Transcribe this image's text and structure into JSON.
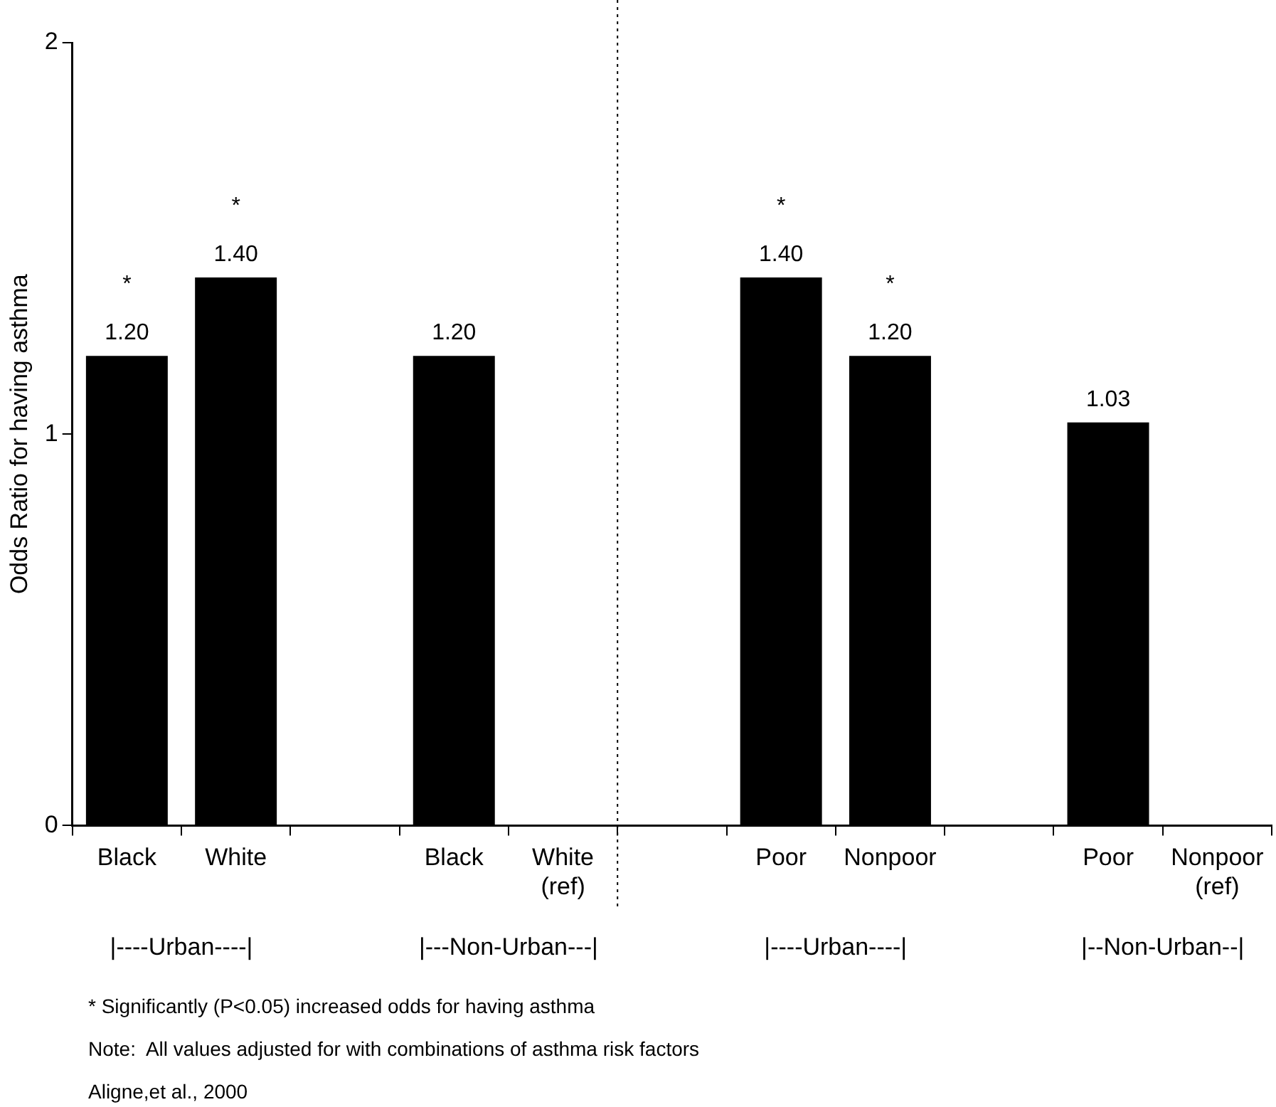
{
  "chart_data": {
    "type": "bar",
    "ylabel": "Odds Ratio for having asthma",
    "categories": [
      "Black",
      "White",
      null,
      "Black",
      "White\n(ref)",
      null,
      "Poor",
      "Nonpoor",
      null,
      "Poor",
      "Nonpoor\n(ref)"
    ],
    "series": [
      {
        "color": "#000000",
        "values": [
          1.2,
          1.4,
          null,
          1.2,
          null,
          null,
          1.4,
          1.2,
          null,
          1.03,
          null
        ],
        "value_labels": [
          "1.20",
          "1.40",
          null,
          "1.20",
          null,
          null,
          "1.40",
          "1.20",
          null,
          "1.03",
          null
        ]
      }
    ],
    "ylim": [
      0,
      2
    ],
    "yticks": [
      0,
      1,
      2
    ],
    "grid": false,
    "legend": false,
    "annotations": [
      "|----Urban----|",
      "|---Non-Urban---|",
      "|----Urban----|",
      "|--Non-Urban--|",
      "* Significantly (P<0.05) increased odds for having asthma",
      "Note:  All values adjusted for with combinations of asthma risk factors",
      "Aligne,et al., 2000",
      {
        "text": "*",
        "x": "Black",
        "y": 1.2
      },
      {
        "text": "*",
        "x": "White",
        "y": 1.4
      },
      {
        "text": "*",
        "x": "Poor",
        "y": 1.4
      },
      {
        "text": "*",
        "x": "Nonpoor",
        "y": 1.2
      }
    ]
  }
}
